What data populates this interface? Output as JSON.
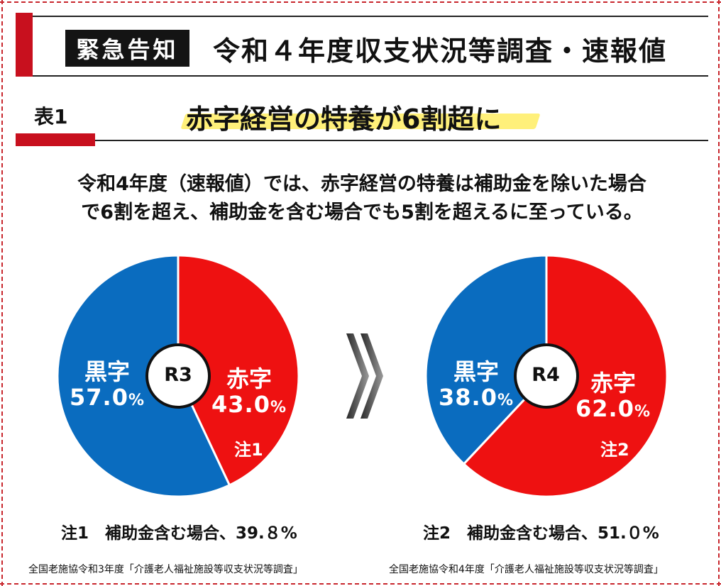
{
  "header": {
    "badge": "緊急告知",
    "title": "令和４年度収支状況等調査・速報値"
  },
  "section": {
    "label": "表1",
    "title": "赤字経営の特養が6割超に"
  },
  "description": [
    "令和4年度（速報値）では、赤字経営の特養は補助金を除いた場合",
    "で6割を超え、補助金を含む場合でも5割を超えるに至っている。"
  ],
  "colors": {
    "red": "#ee1111",
    "blue": "#0a6cbf",
    "accent": "#c8101e"
  },
  "arrow_icon": "double-chevron-right-icon",
  "chart_data": [
    {
      "type": "pie",
      "center_label": "R3",
      "slices": [
        {
          "name": "赤字",
          "value": 43.0,
          "value_text": "43.0",
          "unit": "%",
          "color": "#ee1111",
          "note_tag": "注1"
        },
        {
          "name": "黒字",
          "value": 57.0,
          "value_text": "57.0",
          "unit": "%",
          "color": "#0a6cbf"
        }
      ],
      "note": "注1　補助金含む場合、39.８%",
      "source": "全国老施協令和3年度「介護老人福祉施設等収支状況等調査」"
    },
    {
      "type": "pie",
      "center_label": "R4",
      "slices": [
        {
          "name": "赤字",
          "value": 62.0,
          "value_text": "62.0",
          "unit": "%",
          "color": "#ee1111",
          "note_tag": "注2"
        },
        {
          "name": "黒字",
          "value": 38.0,
          "value_text": "38.0",
          "unit": "%",
          "color": "#0a6cbf"
        }
      ],
      "note": "注2　補助金含む場合、51.０%",
      "source": "全国老施協令和4年度「介護老人福祉施設等収支状況等調査」"
    }
  ]
}
